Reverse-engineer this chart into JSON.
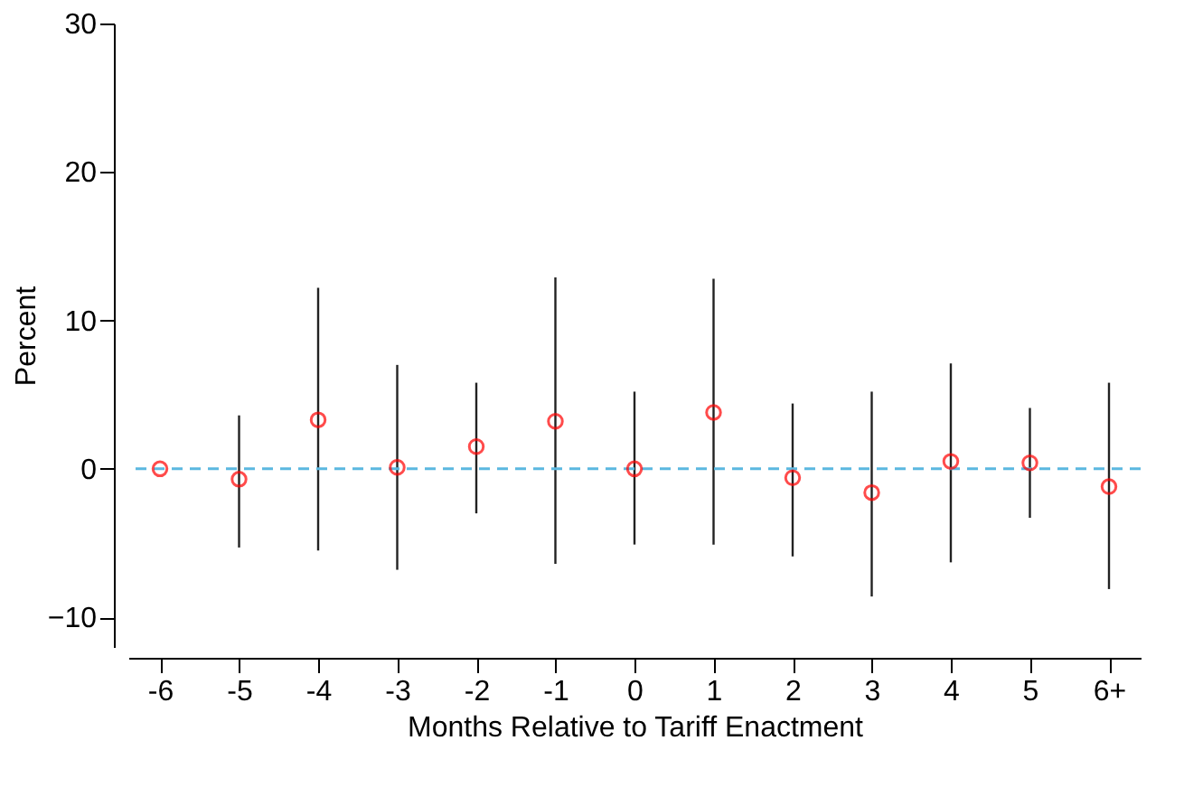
{
  "chart_data": {
    "type": "scatter",
    "xlabel": "Months Relative to Tariff Enactment",
    "ylabel": "Percent",
    "categories": [
      "-6",
      "-5",
      "-4",
      "-3",
      "-2",
      "-1",
      "0",
      "1",
      "2",
      "3",
      "4",
      "5",
      "6+"
    ],
    "values": [
      0,
      -0.7,
      3.3,
      0.1,
      1.5,
      3.2,
      0,
      3.8,
      -0.6,
      -1.6,
      0.5,
      0.4,
      -1.2
    ],
    "errors": [
      null,
      [
        -5.3,
        3.6
      ],
      [
        -5.5,
        12.2
      ],
      [
        -6.8,
        7.0
      ],
      [
        -3.0,
        5.8
      ],
      [
        -6.4,
        12.9
      ],
      [
        -5.1,
        5.2
      ],
      [
        -5.1,
        12.8
      ],
      [
        -5.9,
        4.4
      ],
      [
        -8.6,
        5.2
      ],
      [
        -6.3,
        7.1
      ],
      [
        -3.3,
        4.1
      ],
      [
        -8.1,
        5.8
      ]
    ],
    "color": "#ff0000",
    "marker": "circle",
    "ylim": [
      -12,
      30
    ],
    "yticks": [
      -10,
      0,
      10,
      20,
      30
    ],
    "grid": false,
    "ref_lines": [
      {
        "axis": "y",
        "value": 0,
        "color": "#5bb8e0",
        "line_style": "dashed"
      }
    ]
  }
}
